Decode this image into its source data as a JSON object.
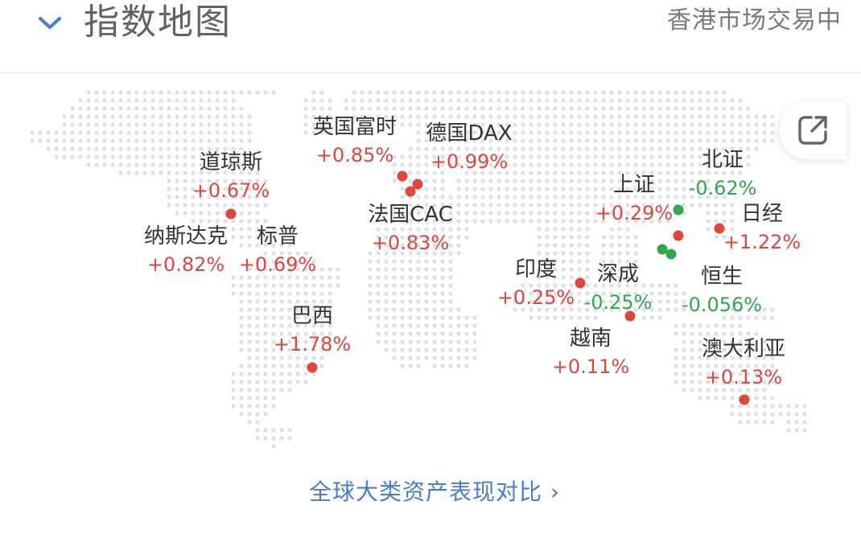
{
  "header": {
    "title": "指数地图",
    "status": "香港市场交易中"
  },
  "footer": {
    "link_label": "全球大类资产表现对比",
    "link_arrow": "›"
  },
  "icons": {
    "collapse": "chevron-down-icon",
    "share": "share-external-icon"
  },
  "colors": {
    "up": "#e0463c",
    "down": "#31a84d",
    "link": "#4a7cc9",
    "map_dot": "#dde0ea"
  },
  "markets": [
    {
      "key": "dow",
      "name": "道琼斯",
      "change": "+0.67%",
      "dir": "up"
    },
    {
      "key": "nasdaq",
      "name": "纳斯达克",
      "change": "+0.82%",
      "dir": "up"
    },
    {
      "key": "sp500",
      "name": "标普",
      "change": "+0.69%",
      "dir": "up"
    },
    {
      "key": "ftse",
      "name": "英国富时",
      "change": "+0.85%",
      "dir": "up"
    },
    {
      "key": "dax",
      "name": "德国DAX",
      "change": "+0.99%",
      "dir": "up"
    },
    {
      "key": "cac",
      "name": "法国CAC",
      "change": "+0.83%",
      "dir": "up"
    },
    {
      "key": "brazil",
      "name": "巴西",
      "change": "+1.78%",
      "dir": "up"
    },
    {
      "key": "india",
      "name": "印度",
      "change": "+0.25%",
      "dir": "up"
    },
    {
      "key": "shenzhen",
      "name": "深成",
      "change": "-0.25%",
      "dir": "down"
    },
    {
      "key": "vietnam",
      "name": "越南",
      "change": "+0.11%",
      "dir": "up"
    },
    {
      "key": "shanghai",
      "name": "上证",
      "change": "+0.29%",
      "dir": "up"
    },
    {
      "key": "beizheng",
      "name": "北证",
      "change": "-0.62%",
      "dir": "down"
    },
    {
      "key": "nikkei",
      "name": "日经",
      "change": "+1.22%",
      "dir": "up"
    },
    {
      "key": "hangseng",
      "name": "恒生",
      "change": "-0.056%",
      "dir": "down"
    },
    {
      "key": "australia",
      "name": "澳大利亚",
      "change": "+0.13%",
      "dir": "up"
    }
  ]
}
